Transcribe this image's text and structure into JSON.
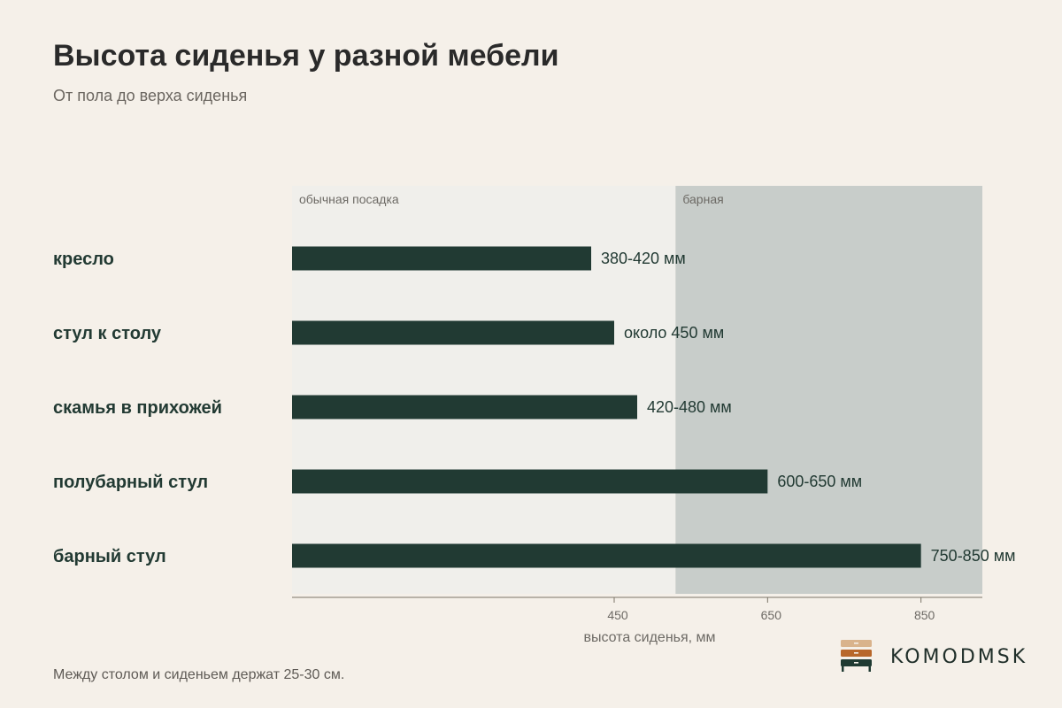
{
  "title": "Высота сиденья у разной мебели",
  "subtitle": "От пола до верха сиденья",
  "footnote": "Между столом и сиденьем держат 25-30 см.",
  "brand": {
    "name": "KOMODMSK",
    "logo_icon": "dresser-logo-icon"
  },
  "colors": {
    "background": "#f5f0e9",
    "zone_normal": "#f0efeb",
    "zone_bar": "#c8cdca",
    "bar": "#213a33",
    "axis": "#7a7467"
  },
  "chart_data": {
    "type": "bar",
    "orientation": "horizontal",
    "xlabel": "высота сиденья, мм",
    "xticks": [
      450,
      650,
      850
    ],
    "xlim": [
      30,
      930
    ],
    "zones": [
      {
        "label": "обычная посадка",
        "from": 30,
        "to": 530
      },
      {
        "label": "барная",
        "from": 530,
        "to": 930
      }
    ],
    "categories": [
      "кресло",
      "стул к столу",
      "скамья в прихожей",
      "полубарный стул",
      "барный стул"
    ],
    "values": [
      420,
      450,
      480,
      650,
      850
    ],
    "value_labels": [
      "380-420 мм",
      "около 450 мм",
      "420-480 мм",
      "600-650 мм",
      "750-850 мм"
    ]
  }
}
